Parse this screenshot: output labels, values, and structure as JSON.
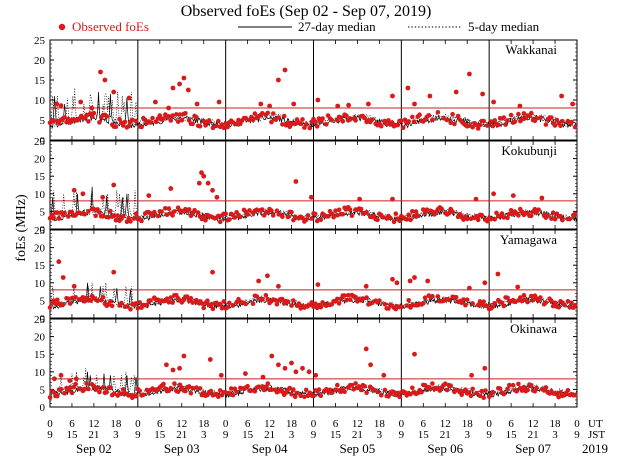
{
  "chart_data": {
    "type": "scatter",
    "title": "Observed foEs (Sep 02 - Sep 07, 2019)",
    "ylabel": "foEs (MHz)",
    "ylim": [
      0,
      25
    ],
    "yticks": [
      0,
      5,
      10,
      15,
      20,
      25
    ],
    "threshold_mhz": 8,
    "legend": {
      "observed": "Observed foEs",
      "median27": "27-day median",
      "median5": "5-day median"
    },
    "axis_labels": {
      "ut": "UT",
      "jst": "JST",
      "year": "2019"
    },
    "ut_ticks": [
      "0",
      "6",
      "12",
      "18",
      "0",
      "6",
      "12",
      "18",
      "0",
      "6",
      "12",
      "18",
      "0",
      "6",
      "12",
      "18",
      "0",
      "6",
      "12",
      "18",
      "0",
      "6",
      "12",
      "18",
      "0"
    ],
    "jst_ticks": [
      "9",
      "15",
      "21",
      "3",
      "9",
      "15",
      "21",
      "3",
      "9",
      "15",
      "21",
      "3",
      "9",
      "15",
      "21",
      "3",
      "9",
      "15",
      "21",
      "3",
      "9",
      "15",
      "21",
      "3",
      "9"
    ],
    "days": [
      "Sep 02",
      "Sep 03",
      "Sep 04",
      "Sep 05",
      "Sep 06",
      "Sep 07"
    ],
    "stations": [
      {
        "name": "Wakkanai",
        "baseline": 5,
        "spikes": [
          [
            0.3,
            9
          ],
          [
            0.5,
            8.6
          ],
          [
            1.4,
            9.5
          ],
          [
            1.9,
            8
          ],
          [
            2.3,
            17
          ],
          [
            2.5,
            15
          ],
          [
            2.9,
            12
          ],
          [
            3.6,
            10.5
          ],
          [
            4.8,
            9.5
          ],
          [
            5.4,
            8
          ],
          [
            5.6,
            13
          ],
          [
            5.9,
            14
          ],
          [
            6.1,
            15.5
          ],
          [
            6.3,
            12.5
          ],
          [
            6.7,
            9
          ],
          [
            7.7,
            9.5
          ],
          [
            9.6,
            9
          ],
          [
            10,
            8.5
          ],
          [
            10.4,
            15
          ],
          [
            10.7,
            17.5
          ],
          [
            11.1,
            9
          ],
          [
            12.2,
            10
          ],
          [
            13.1,
            8.5
          ],
          [
            13.6,
            8.7
          ],
          [
            14.5,
            9
          ],
          [
            15.6,
            11
          ],
          [
            16.3,
            13
          ],
          [
            16.6,
            9
          ],
          [
            17.3,
            11
          ],
          [
            18.5,
            12
          ],
          [
            19.1,
            16.5
          ],
          [
            19.7,
            11.5
          ],
          [
            20.2,
            9.5
          ],
          [
            21.4,
            8.5
          ],
          [
            23.3,
            11
          ],
          [
            23.8,
            9
          ]
        ],
        "spikes5": [
          [
            0.7,
            11
          ],
          [
            1.9,
            11
          ],
          [
            4.7,
            10.5
          ],
          [
            6.2,
            11
          ],
          [
            6.7,
            13
          ],
          [
            9.2,
            9
          ],
          [
            10.9,
            11.5
          ],
          [
            11.2,
            10.5
          ],
          [
            11.4,
            9.5
          ],
          [
            13.3,
            10.5
          ],
          [
            14.5,
            9
          ],
          [
            15.1,
            11
          ],
          [
            15.3,
            11.5
          ],
          [
            15.6,
            10.5
          ],
          [
            16,
            11
          ],
          [
            16.9,
            10
          ],
          [
            18.6,
            12
          ],
          [
            19.8,
            11
          ],
          [
            20.2,
            9.5
          ],
          [
            22.3,
            12
          ],
          [
            23.6,
            9.5
          ]
        ],
        "spikes27": [
          [
            1.2,
            11
          ],
          [
            3.9,
            9
          ],
          [
            13.3,
            12
          ],
          [
            16.6,
            11.5
          ],
          [
            21.1,
            10.5
          ]
        ]
      },
      {
        "name": "Kokubunji",
        "baseline": 4.2,
        "spikes": [
          [
            1.1,
            11
          ],
          [
            1.5,
            10
          ],
          [
            2.4,
            9
          ],
          [
            2.9,
            12.5
          ],
          [
            4.5,
            9.5
          ],
          [
            5.5,
            11.5
          ],
          [
            6.8,
            13
          ],
          [
            6.9,
            16
          ],
          [
            7,
            15
          ],
          [
            7.2,
            13
          ],
          [
            7.4,
            11
          ],
          [
            7.6,
            9
          ],
          [
            11.2,
            13.5
          ],
          [
            11.9,
            9
          ],
          [
            14.1,
            8.5
          ],
          [
            15.6,
            8.5
          ],
          [
            19.4,
            8.5
          ],
          [
            20.2,
            10
          ],
          [
            21.1,
            9.5
          ],
          [
            22.4,
            8.8
          ]
        ],
        "spikes5": [
          [
            1.1,
            11
          ],
          [
            3.8,
            10
          ],
          [
            6.6,
            11
          ],
          [
            7.3,
            10.5
          ],
          [
            11.3,
            10
          ],
          [
            14.6,
            9.5
          ],
          [
            15.8,
            10
          ],
          [
            18.2,
            11
          ],
          [
            18.9,
            10
          ],
          [
            20.1,
            9
          ],
          [
            21.6,
            10
          ],
          [
            23.2,
            11
          ]
        ],
        "spikes27": [
          [
            0.7,
            9
          ],
          [
            7.4,
            10
          ],
          [
            11.4,
            12
          ],
          [
            15.6,
            9.5
          ],
          [
            19.8,
            9
          ],
          [
            20.9,
            10
          ]
        ]
      },
      {
        "name": "Yamagawa",
        "baseline": 4.6,
        "spikes": [
          [
            0.4,
            16
          ],
          [
            0.6,
            11.5
          ],
          [
            1.1,
            9
          ],
          [
            2.9,
            13
          ],
          [
            7.4,
            13
          ],
          [
            9.5,
            10.5
          ],
          [
            9.9,
            12
          ],
          [
            10.4,
            9
          ],
          [
            12.2,
            9.5
          ],
          [
            14.4,
            9
          ],
          [
            15.6,
            11
          ],
          [
            15.8,
            10
          ],
          [
            16.4,
            10.5
          ],
          [
            16.6,
            11.5
          ],
          [
            17.2,
            10.5
          ],
          [
            19.1,
            8.5
          ],
          [
            19.8,
            10
          ],
          [
            20.4,
            12.5
          ],
          [
            21.3,
            8.8
          ]
        ],
        "spikes5": [
          [
            0.7,
            9
          ],
          [
            6.6,
            9
          ],
          [
            10.4,
            9
          ],
          [
            11.6,
            10
          ],
          [
            14.6,
            9
          ],
          [
            15.2,
            10
          ],
          [
            17.6,
            8.5
          ],
          [
            20.7,
            9
          ],
          [
            22.3,
            9
          ]
        ],
        "spikes27": [
          [
            10.3,
            10
          ],
          [
            13.7,
            9
          ],
          [
            18.3,
            8.5
          ],
          [
            22.1,
            8
          ]
        ]
      },
      {
        "name": "Okinawa",
        "baseline": 4.8,
        "spikes": [
          [
            0.2,
            8
          ],
          [
            0.5,
            9
          ],
          [
            0.9,
            7.5
          ],
          [
            1.2,
            8
          ],
          [
            5.3,
            12
          ],
          [
            5.6,
            10.5
          ],
          [
            5.9,
            11
          ],
          [
            6.1,
            14.5
          ],
          [
            7.3,
            13.5
          ],
          [
            7.8,
            9
          ],
          [
            8.9,
            9.5
          ],
          [
            9.7,
            8.5
          ],
          [
            10.1,
            14.5
          ],
          [
            10.4,
            12
          ],
          [
            10.7,
            11
          ],
          [
            11,
            12.5
          ],
          [
            11.2,
            10
          ],
          [
            11.5,
            11
          ],
          [
            11.8,
            10
          ],
          [
            12.1,
            9
          ],
          [
            14.4,
            16.5
          ],
          [
            14.6,
            12
          ],
          [
            15.2,
            9
          ],
          [
            16.6,
            15
          ],
          [
            19.2,
            9
          ],
          [
            19.8,
            11
          ]
        ],
        "spikes5": [
          [
            2.9,
            9
          ],
          [
            6.1,
            9.5
          ],
          [
            7.3,
            10
          ],
          [
            9.2,
            8.5
          ],
          [
            9.7,
            11
          ],
          [
            12.8,
            9
          ],
          [
            17.6,
            9
          ],
          [
            19.4,
            9
          ],
          [
            20.7,
            10
          ],
          [
            22.3,
            8.5
          ],
          [
            23.1,
            9
          ]
        ],
        "spikes27": [
          [
            10.2,
            10
          ],
          [
            11.1,
            9
          ],
          [
            14.7,
            9.5
          ],
          [
            16.5,
            9
          ],
          [
            20.9,
            9
          ],
          [
            23.6,
            8.5
          ]
        ]
      }
    ]
  }
}
